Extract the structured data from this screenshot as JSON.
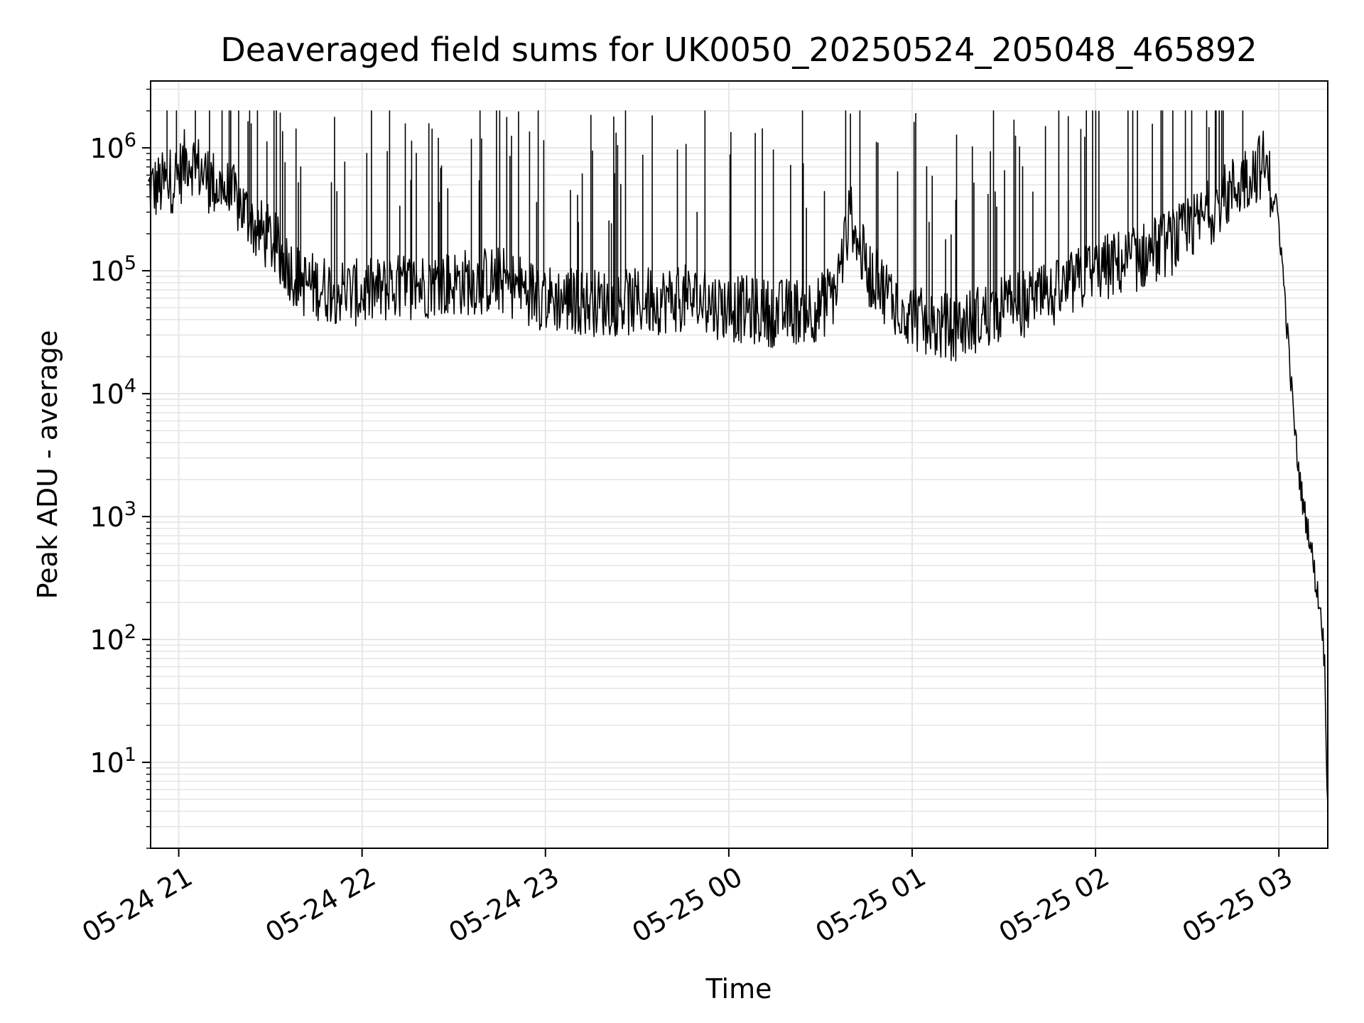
{
  "chart_data": {
    "type": "line",
    "title": "Deaveraged field sums for UK0050_20250524_205048_465892",
    "xlabel": "Time",
    "ylabel": "Peak ADU - average",
    "yscale": "log",
    "ylim": [
      2,
      3500000
    ],
    "xlim": [
      "2025-05-24 20:50:48",
      "2025-05-25 03:16:00"
    ],
    "grid": "on",
    "colors": {
      "line": "#000000",
      "grid": "#e6e6e6",
      "axis": "#000000"
    },
    "x_ticks": [
      {
        "value": "2025-05-24 21:00",
        "label": "05-24 21"
      },
      {
        "value": "2025-05-24 22:00",
        "label": "05-24 22"
      },
      {
        "value": "2025-05-24 23:00",
        "label": "05-24 23"
      },
      {
        "value": "2025-05-25 00:00",
        "label": "05-25 00"
      },
      {
        "value": "2025-05-25 01:00",
        "label": "05-25 01"
      },
      {
        "value": "2025-05-25 02:00",
        "label": "05-25 02"
      },
      {
        "value": "2025-05-25 03:00",
        "label": "05-25 03"
      }
    ],
    "y_ticks": [
      {
        "value": 10,
        "base": "10",
        "exp": "1"
      },
      {
        "value": 100,
        "base": "10",
        "exp": "2"
      },
      {
        "value": 1000,
        "base": "10",
        "exp": "3"
      },
      {
        "value": 10000,
        "base": "10",
        "exp": "4"
      },
      {
        "value": 100000,
        "base": "10",
        "exp": "5"
      },
      {
        "value": 1000000,
        "base": "10",
        "exp": "6"
      }
    ],
    "series": [
      {
        "x": [
          "2025-05-24 20:50",
          "2025-05-24 20:55",
          "2025-05-24 21:00",
          "2025-05-24 21:03",
          "2025-05-24 21:06",
          "2025-05-24 21:10",
          "2025-05-24 21:15",
          "2025-05-24 21:20",
          "2025-05-24 21:25",
          "2025-05-24 21:30",
          "2025-05-24 21:40",
          "2025-05-24 21:50",
          "2025-05-24 22:00",
          "2025-05-24 22:15",
          "2025-05-24 22:30",
          "2025-05-24 22:45",
          "2025-05-24 23:00",
          "2025-05-24 23:15",
          "2025-05-24 23:30",
          "2025-05-24 23:45",
          "2025-05-25 00:00",
          "2025-05-25 00:15",
          "2025-05-25 00:30",
          "2025-05-25 00:35",
          "2025-05-25 00:40",
          "2025-05-25 00:45",
          "2025-05-25 00:55",
          "2025-05-25 01:05",
          "2025-05-25 01:15",
          "2025-05-25 01:30",
          "2025-05-25 01:45",
          "2025-05-25 02:00",
          "2025-05-25 02:15",
          "2025-05-25 02:30",
          "2025-05-25 02:40",
          "2025-05-25 02:50",
          "2025-05-25 02:55",
          "2025-05-25 02:58",
          "2025-05-25 03:00",
          "2025-05-25 03:02",
          "2025-05-25 03:04",
          "2025-05-25 03:06",
          "2025-05-25 03:08",
          "2025-05-25 03:10",
          "2025-05-25 03:12",
          "2025-05-25 03:14",
          "2025-05-25 03:15",
          "2025-05-25 03:16"
        ],
        "y": [
          450000,
          500000,
          600000,
          850000,
          700000,
          550000,
          450000,
          350000,
          220000,
          180000,
          80000,
          70000,
          65000,
          75000,
          80000,
          85000,
          60000,
          55000,
          55000,
          60000,
          50000,
          45000,
          50000,
          70000,
          300000,
          100000,
          55000,
          35000,
          35000,
          50000,
          60000,
          100000,
          130000,
          200000,
          350000,
          600000,
          750000,
          450000,
          250000,
          60000,
          12000,
          3000,
          1200,
          700,
          300,
          150,
          60,
          4
        ]
      }
    ]
  }
}
